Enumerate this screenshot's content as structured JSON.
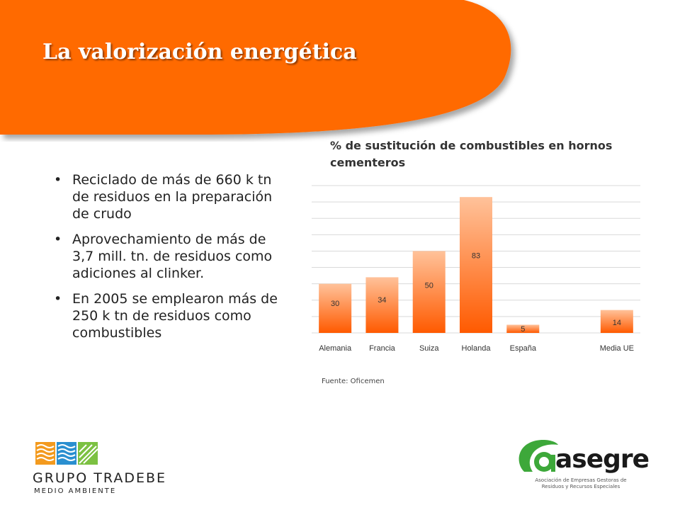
{
  "slide": {
    "title": "La valorización energética",
    "bullets": [
      "Reciclado de más de 660 k tn de residuos en la preparación de crudo",
      "Aprovechamiento de más de 3,7 mill. tn. de residuos como adiciones al clinker.",
      "En 2005 se emplearon más de 250 k tn de residuos  como combustibles"
    ],
    "bullet_glyph": "•",
    "source": "Fuente: Oficemen"
  },
  "colors": {
    "banner_orange": "#ff6a00",
    "bar_top": "#ffc29a",
    "bar_bottom": "#ff5a00",
    "grid": "#d9d9d9"
  },
  "chart_data": {
    "type": "bar",
    "title": "% de sustitución de combustibles en hornos cementeros",
    "categories": [
      "Alemania",
      "Francia",
      "Suiza",
      "Holanda",
      "España",
      "",
      "Media UE"
    ],
    "values": [
      30,
      34,
      50,
      83,
      5,
      null,
      14
    ],
    "ylim": [
      0,
      90
    ],
    "grid": true,
    "data_labels": true,
    "legend": "none"
  },
  "logos": {
    "tradebe": {
      "name": "GRUPO TRADEBE",
      "subtitle": "MEDIO AMBIENTE",
      "icon": "tradebe-waves-icon"
    },
    "asegre": {
      "name": "asegre",
      "tagline": "Asociación de Empresas Gestoras de Residuos y Recursos Especiales",
      "icon": "asegre-leaf-icon"
    }
  }
}
